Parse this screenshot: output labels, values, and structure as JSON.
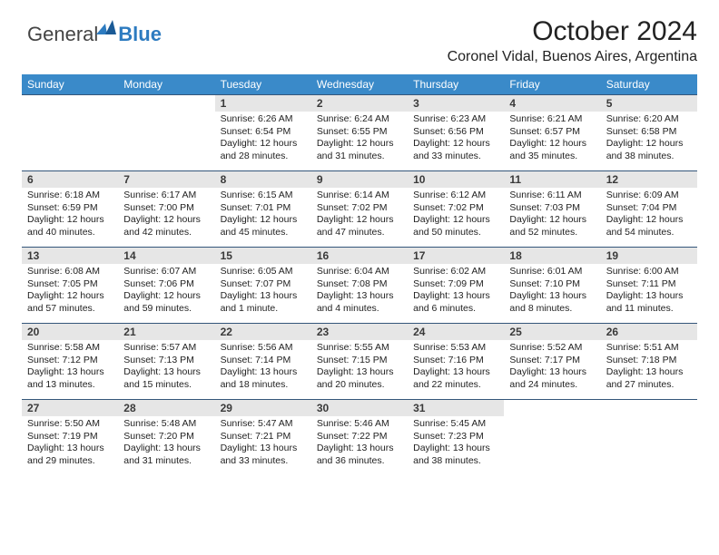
{
  "logo": {
    "word1": "General",
    "word2": "Blue"
  },
  "header": {
    "title": "October 2024",
    "location": "Coronel Vidal, Buenos Aires, Argentina"
  },
  "colors": {
    "header_bg": "#3a8ac9",
    "header_text": "#ffffff",
    "daynum_bg": "#e6e6e6",
    "row_border": "#34567a",
    "logo_blue": "#2d7bc0",
    "logo_gray": "#444444"
  },
  "weekdays": [
    "Sunday",
    "Monday",
    "Tuesday",
    "Wednesday",
    "Thursday",
    "Friday",
    "Saturday"
  ],
  "weeks": [
    [
      null,
      null,
      {
        "n": "1",
        "sunrise": "6:26 AM",
        "sunset": "6:54 PM",
        "dl1": "12 hours",
        "dl2": "and 28 minutes."
      },
      {
        "n": "2",
        "sunrise": "6:24 AM",
        "sunset": "6:55 PM",
        "dl1": "12 hours",
        "dl2": "and 31 minutes."
      },
      {
        "n": "3",
        "sunrise": "6:23 AM",
        "sunset": "6:56 PM",
        "dl1": "12 hours",
        "dl2": "and 33 minutes."
      },
      {
        "n": "4",
        "sunrise": "6:21 AM",
        "sunset": "6:57 PM",
        "dl1": "12 hours",
        "dl2": "and 35 minutes."
      },
      {
        "n": "5",
        "sunrise": "6:20 AM",
        "sunset": "6:58 PM",
        "dl1": "12 hours",
        "dl2": "and 38 minutes."
      }
    ],
    [
      {
        "n": "6",
        "sunrise": "6:18 AM",
        "sunset": "6:59 PM",
        "dl1": "12 hours",
        "dl2": "and 40 minutes."
      },
      {
        "n": "7",
        "sunrise": "6:17 AM",
        "sunset": "7:00 PM",
        "dl1": "12 hours",
        "dl2": "and 42 minutes."
      },
      {
        "n": "8",
        "sunrise": "6:15 AM",
        "sunset": "7:01 PM",
        "dl1": "12 hours",
        "dl2": "and 45 minutes."
      },
      {
        "n": "9",
        "sunrise": "6:14 AM",
        "sunset": "7:02 PM",
        "dl1": "12 hours",
        "dl2": "and 47 minutes."
      },
      {
        "n": "10",
        "sunrise": "6:12 AM",
        "sunset": "7:02 PM",
        "dl1": "12 hours",
        "dl2": "and 50 minutes."
      },
      {
        "n": "11",
        "sunrise": "6:11 AM",
        "sunset": "7:03 PM",
        "dl1": "12 hours",
        "dl2": "and 52 minutes."
      },
      {
        "n": "12",
        "sunrise": "6:09 AM",
        "sunset": "7:04 PM",
        "dl1": "12 hours",
        "dl2": "and 54 minutes."
      }
    ],
    [
      {
        "n": "13",
        "sunrise": "6:08 AM",
        "sunset": "7:05 PM",
        "dl1": "12 hours",
        "dl2": "and 57 minutes."
      },
      {
        "n": "14",
        "sunrise": "6:07 AM",
        "sunset": "7:06 PM",
        "dl1": "12 hours",
        "dl2": "and 59 minutes."
      },
      {
        "n": "15",
        "sunrise": "6:05 AM",
        "sunset": "7:07 PM",
        "dl1": "13 hours",
        "dl2": "and 1 minute."
      },
      {
        "n": "16",
        "sunrise": "6:04 AM",
        "sunset": "7:08 PM",
        "dl1": "13 hours",
        "dl2": "and 4 minutes."
      },
      {
        "n": "17",
        "sunrise": "6:02 AM",
        "sunset": "7:09 PM",
        "dl1": "13 hours",
        "dl2": "and 6 minutes."
      },
      {
        "n": "18",
        "sunrise": "6:01 AM",
        "sunset": "7:10 PM",
        "dl1": "13 hours",
        "dl2": "and 8 minutes."
      },
      {
        "n": "19",
        "sunrise": "6:00 AM",
        "sunset": "7:11 PM",
        "dl1": "13 hours",
        "dl2": "and 11 minutes."
      }
    ],
    [
      {
        "n": "20",
        "sunrise": "5:58 AM",
        "sunset": "7:12 PM",
        "dl1": "13 hours",
        "dl2": "and 13 minutes."
      },
      {
        "n": "21",
        "sunrise": "5:57 AM",
        "sunset": "7:13 PM",
        "dl1": "13 hours",
        "dl2": "and 15 minutes."
      },
      {
        "n": "22",
        "sunrise": "5:56 AM",
        "sunset": "7:14 PM",
        "dl1": "13 hours",
        "dl2": "and 18 minutes."
      },
      {
        "n": "23",
        "sunrise": "5:55 AM",
        "sunset": "7:15 PM",
        "dl1": "13 hours",
        "dl2": "and 20 minutes."
      },
      {
        "n": "24",
        "sunrise": "5:53 AM",
        "sunset": "7:16 PM",
        "dl1": "13 hours",
        "dl2": "and 22 minutes."
      },
      {
        "n": "25",
        "sunrise": "5:52 AM",
        "sunset": "7:17 PM",
        "dl1": "13 hours",
        "dl2": "and 24 minutes."
      },
      {
        "n": "26",
        "sunrise": "5:51 AM",
        "sunset": "7:18 PM",
        "dl1": "13 hours",
        "dl2": "and 27 minutes."
      }
    ],
    [
      {
        "n": "27",
        "sunrise": "5:50 AM",
        "sunset": "7:19 PM",
        "dl1": "13 hours",
        "dl2": "and 29 minutes."
      },
      {
        "n": "28",
        "sunrise": "5:48 AM",
        "sunset": "7:20 PM",
        "dl1": "13 hours",
        "dl2": "and 31 minutes."
      },
      {
        "n": "29",
        "sunrise": "5:47 AM",
        "sunset": "7:21 PM",
        "dl1": "13 hours",
        "dl2": "and 33 minutes."
      },
      {
        "n": "30",
        "sunrise": "5:46 AM",
        "sunset": "7:22 PM",
        "dl1": "13 hours",
        "dl2": "and 36 minutes."
      },
      {
        "n": "31",
        "sunrise": "5:45 AM",
        "sunset": "7:23 PM",
        "dl1": "13 hours",
        "dl2": "and 38 minutes."
      },
      null,
      null
    ]
  ],
  "labels": {
    "sunrise": "Sunrise:",
    "sunset": "Sunset:",
    "daylight": "Daylight:"
  }
}
